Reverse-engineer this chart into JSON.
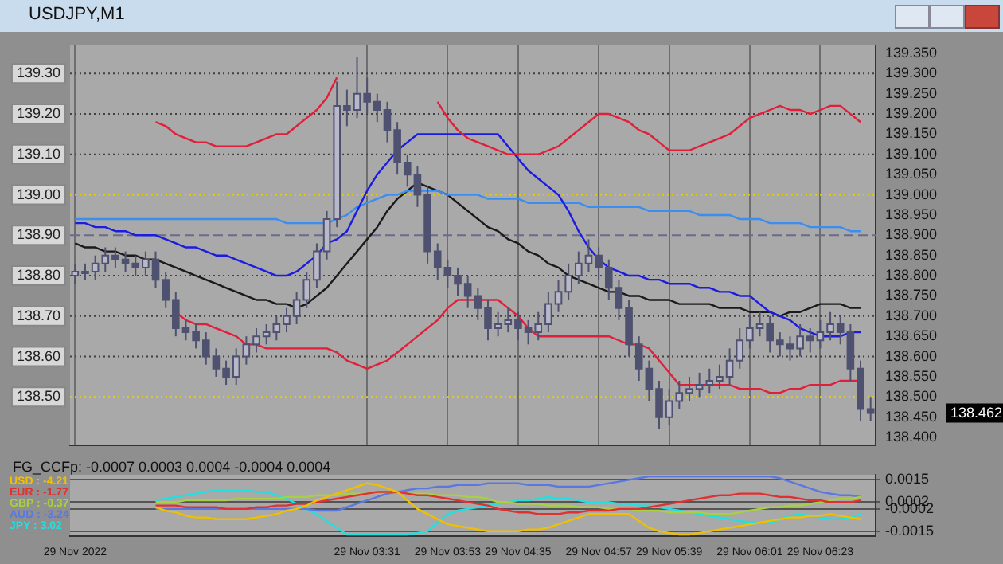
{
  "chart_data": [
    {
      "type": "candlestick",
      "title": "USDJPY,M1",
      "color": "#4f5170",
      "tick_labels": "y",
      "grid": "x",
      "marker": "none",
      "line_style": "solid",
      "categories": [
        null,
        null,
        null,
        null,
        null,
        null,
        null,
        null,
        null,
        null,
        null,
        null,
        null,
        null,
        null,
        null,
        null,
        null,
        null,
        null,
        null,
        null,
        null,
        null,
        null,
        null,
        null,
        null,
        null,
        null,
        null,
        null,
        null,
        null,
        null,
        null,
        null,
        null,
        null,
        null,
        null,
        null,
        null,
        null,
        null,
        null,
        null,
        null,
        null,
        null,
        null,
        null,
        null,
        null,
        null,
        null,
        null,
        null,
        null,
        null,
        null,
        null,
        null,
        null,
        null,
        null,
        null,
        null,
        null,
        null,
        null,
        null,
        null,
        null,
        null,
        null,
        null,
        null,
        null,
        null
      ],
      "ohlc": [
        [
          138.8,
          138.83,
          138.78,
          138.81
        ],
        [
          138.81,
          138.83,
          138.79,
          138.81
        ],
        [
          138.81,
          138.85,
          138.79,
          138.83
        ],
        [
          138.83,
          138.87,
          138.81,
          138.85
        ],
        [
          138.85,
          138.87,
          138.82,
          138.84
        ],
        [
          138.84,
          138.86,
          138.81,
          138.83
        ],
        [
          138.83,
          138.85,
          138.8,
          138.82
        ],
        [
          138.82,
          138.86,
          138.8,
          138.84
        ],
        [
          138.84,
          138.86,
          138.77,
          138.79
        ],
        [
          138.79,
          138.81,
          138.72,
          138.74
        ],
        [
          138.74,
          138.76,
          138.65,
          138.67
        ],
        [
          138.67,
          138.69,
          138.64,
          138.66
        ],
        [
          138.66,
          138.68,
          138.62,
          138.64
        ],
        [
          138.64,
          138.66,
          138.58,
          138.6
        ],
        [
          138.6,
          138.62,
          138.55,
          138.57
        ],
        [
          138.57,
          138.59,
          138.53,
          138.55
        ],
        [
          138.55,
          138.62,
          138.53,
          138.6
        ],
        [
          138.6,
          138.65,
          138.58,
          138.63
        ],
        [
          138.63,
          138.67,
          138.61,
          138.65
        ],
        [
          138.65,
          138.68,
          138.63,
          138.66
        ],
        [
          138.66,
          138.7,
          138.64,
          138.68
        ],
        [
          138.68,
          138.72,
          138.66,
          138.7
        ],
        [
          138.7,
          138.76,
          138.68,
          138.74
        ],
        [
          138.74,
          138.81,
          138.72,
          138.79
        ],
        [
          138.79,
          138.88,
          138.77,
          138.86
        ],
        [
          138.86,
          138.96,
          138.84,
          138.94
        ],
        [
          138.94,
          139.28,
          138.92,
          139.22
        ],
        [
          139.22,
          139.26,
          139.17,
          139.21
        ],
        [
          139.21,
          139.34,
          139.19,
          139.25
        ],
        [
          139.25,
          139.29,
          139.2,
          139.23
        ],
        [
          139.23,
          139.25,
          139.18,
          139.21
        ],
        [
          139.21,
          139.23,
          139.13,
          139.16
        ],
        [
          139.16,
          139.18,
          139.05,
          139.08
        ],
        [
          139.08,
          139.1,
          139.02,
          139.05
        ],
        [
          139.05,
          139.07,
          138.97,
          139.0
        ],
        [
          139.0,
          139.02,
          138.83,
          138.86
        ],
        [
          138.86,
          138.88,
          138.79,
          138.82
        ],
        [
          138.82,
          138.84,
          138.77,
          138.8
        ],
        [
          138.8,
          138.82,
          138.75,
          138.78
        ],
        [
          138.78,
          138.8,
          138.72,
          138.75
        ],
        [
          138.75,
          138.77,
          138.69,
          138.72
        ],
        [
          138.72,
          138.74,
          138.64,
          138.67
        ],
        [
          138.67,
          138.71,
          138.65,
          138.68
        ],
        [
          138.68,
          138.72,
          138.66,
          138.69
        ],
        [
          138.69,
          138.71,
          138.64,
          138.67
        ],
        [
          138.67,
          138.69,
          138.63,
          138.66
        ],
        [
          138.66,
          138.71,
          138.64,
          138.68
        ],
        [
          138.68,
          138.76,
          138.66,
          138.73
        ],
        [
          138.73,
          138.79,
          138.71,
          138.76
        ],
        [
          138.76,
          138.83,
          138.74,
          138.8
        ],
        [
          138.8,
          138.86,
          138.78,
          138.83
        ],
        [
          138.83,
          138.89,
          138.81,
          138.85
        ],
        [
          138.85,
          138.87,
          138.79,
          138.82
        ],
        [
          138.82,
          138.84,
          138.74,
          138.77
        ],
        [
          138.77,
          138.79,
          138.69,
          138.72
        ],
        [
          138.72,
          138.74,
          138.6,
          138.63
        ],
        [
          138.63,
          138.65,
          138.54,
          138.57
        ],
        [
          138.57,
          138.59,
          138.49,
          138.52
        ],
        [
          138.52,
          138.54,
          138.42,
          138.45
        ],
        [
          138.45,
          138.52,
          138.43,
          138.49
        ],
        [
          138.49,
          138.54,
          138.47,
          138.51
        ],
        [
          138.51,
          138.55,
          138.49,
          138.52
        ],
        [
          138.52,
          138.56,
          138.5,
          138.53
        ],
        [
          138.53,
          138.57,
          138.51,
          138.54
        ],
        [
          138.54,
          138.58,
          138.52,
          138.55
        ],
        [
          138.55,
          138.62,
          138.53,
          138.59
        ],
        [
          138.59,
          138.67,
          138.57,
          138.64
        ],
        [
          138.64,
          138.7,
          138.62,
          138.67
        ],
        [
          138.67,
          138.71,
          138.65,
          138.68
        ],
        [
          138.68,
          138.7,
          138.61,
          138.64
        ],
        [
          138.64,
          138.66,
          138.6,
          138.63
        ],
        [
          138.63,
          138.65,
          138.59,
          138.62
        ],
        [
          138.62,
          138.68,
          138.6,
          138.65
        ],
        [
          138.65,
          138.67,
          138.61,
          138.64
        ],
        [
          138.64,
          138.69,
          138.62,
          138.66
        ],
        [
          138.66,
          138.71,
          138.64,
          138.68
        ],
        [
          138.68,
          138.7,
          138.63,
          138.66
        ],
        [
          138.66,
          138.68,
          138.54,
          138.57
        ],
        [
          138.57,
          138.59,
          138.44,
          138.47
        ],
        [
          138.47,
          138.5,
          138.44,
          138.46
        ]
      ],
      "series": [
        {
          "type": "line",
          "color": "#e0203a",
          "values": [
            null,
            null,
            null,
            null,
            null,
            null,
            null,
            null,
            139.18,
            139.17,
            139.15,
            139.14,
            139.13,
            139.13,
            139.12,
            139.12,
            139.12,
            139.12,
            139.13,
            139.14,
            139.15,
            139.15,
            139.17,
            139.19,
            139.21,
            139.24,
            139.29,
            null,
            null,
            null,
            null,
            null,
            null,
            null,
            null,
            null,
            139.23,
            139.19,
            139.16,
            139.14,
            139.13,
            139.12,
            139.11,
            139.1,
            139.1,
            139.1,
            139.1,
            139.11,
            139.12,
            139.14,
            139.16,
            139.18,
            139.2,
            139.2,
            139.19,
            139.18,
            139.16,
            139.15,
            139.13,
            139.11,
            139.11,
            139.11,
            139.12,
            139.13,
            139.14,
            139.15,
            139.17,
            139.19,
            139.2,
            139.21,
            139.22,
            139.21,
            139.21,
            139.2,
            139.21,
            139.22,
            139.22,
            139.2,
            139.18,
            null
          ]
        },
        {
          "type": "line",
          "color": "#e0203a",
          "values": [
            null,
            null,
            null,
            null,
            null,
            null,
            null,
            null,
            null,
            null,
            138.71,
            138.69,
            138.68,
            138.68,
            138.67,
            138.66,
            138.65,
            138.63,
            138.63,
            138.62,
            138.62,
            138.62,
            138.62,
            138.62,
            138.62,
            138.62,
            138.61,
            138.59,
            138.58,
            138.57,
            138.58,
            138.59,
            138.61,
            138.63,
            138.65,
            138.67,
            138.69,
            138.72,
            138.74,
            138.74,
            138.74,
            138.74,
            138.74,
            138.72,
            138.7,
            138.67,
            138.65,
            138.65,
            138.65,
            138.65,
            138.65,
            138.65,
            138.65,
            138.65,
            138.64,
            138.63,
            138.63,
            138.62,
            138.59,
            138.56,
            138.53,
            138.53,
            138.53,
            138.53,
            138.53,
            138.53,
            138.52,
            138.52,
            138.52,
            138.51,
            138.51,
            138.52,
            138.52,
            138.53,
            138.53,
            138.53,
            138.54,
            138.54,
            138.54,
            null
          ]
        },
        {
          "type": "line",
          "color": "#1c1ce0",
          "values": [
            138.93,
            138.93,
            138.92,
            138.92,
            138.91,
            138.91,
            138.9,
            138.9,
            138.9,
            138.89,
            138.88,
            138.87,
            138.87,
            138.86,
            138.85,
            138.85,
            138.84,
            138.83,
            138.82,
            138.81,
            138.8,
            138.8,
            138.81,
            138.83,
            138.85,
            138.88,
            138.89,
            138.91,
            138.96,
            139.01,
            139.05,
            139.08,
            139.11,
            139.13,
            139.15,
            139.15,
            139.15,
            139.15,
            139.15,
            139.15,
            139.15,
            139.15,
            139.15,
            139.12,
            139.09,
            139.06,
            139.04,
            139.02,
            139.0,
            138.96,
            138.91,
            138.87,
            138.84,
            138.82,
            138.81,
            138.8,
            138.8,
            138.79,
            138.79,
            138.78,
            138.78,
            138.78,
            138.77,
            138.77,
            138.76,
            138.76,
            138.75,
            138.75,
            138.73,
            138.71,
            138.7,
            138.69,
            138.67,
            138.66,
            138.65,
            138.65,
            138.65,
            138.66,
            138.66,
            null
          ]
        },
        {
          "type": "line",
          "color": "#3a8ef0",
          "values": [
            138.94,
            138.94,
            138.94,
            138.94,
            138.94,
            138.94,
            138.94,
            138.94,
            138.94,
            138.94,
            138.94,
            138.94,
            138.94,
            138.94,
            138.94,
            138.94,
            138.94,
            138.94,
            138.94,
            138.94,
            138.94,
            138.93,
            138.93,
            138.93,
            138.93,
            138.93,
            138.94,
            138.95,
            138.97,
            138.98,
            138.99,
            139.0,
            139.0,
            139.01,
            139.01,
            139.01,
            139.01,
            139.0,
            139.0,
            139.0,
            139.0,
            138.99,
            138.99,
            138.99,
            138.99,
            138.98,
            138.98,
            138.98,
            138.98,
            138.98,
            138.98,
            138.97,
            138.97,
            138.97,
            138.97,
            138.97,
            138.97,
            138.96,
            138.96,
            138.96,
            138.96,
            138.96,
            138.95,
            138.95,
            138.95,
            138.95,
            138.94,
            138.94,
            138.94,
            138.93,
            138.93,
            138.93,
            138.93,
            138.92,
            138.92,
            138.92,
            138.92,
            138.91,
            138.91,
            null
          ]
        },
        {
          "type": "line",
          "color": "#1a1a1a",
          "values": [
            138.88,
            138.87,
            138.87,
            138.86,
            138.86,
            138.85,
            138.85,
            138.84,
            138.84,
            138.83,
            138.82,
            138.81,
            138.8,
            138.79,
            138.78,
            138.77,
            138.76,
            138.75,
            138.74,
            138.74,
            138.73,
            138.73,
            138.72,
            138.73,
            138.75,
            138.77,
            138.8,
            138.83,
            138.86,
            138.89,
            138.92,
            138.96,
            138.99,
            139.01,
            139.03,
            139.02,
            139.01,
            139.0,
            138.98,
            138.96,
            138.94,
            138.92,
            138.91,
            138.89,
            138.88,
            138.86,
            138.85,
            138.83,
            138.82,
            138.8,
            138.79,
            138.78,
            138.77,
            138.76,
            138.76,
            138.75,
            138.75,
            138.74,
            138.74,
            138.74,
            138.73,
            138.73,
            138.73,
            138.73,
            138.72,
            138.72,
            138.72,
            138.71,
            138.71,
            138.71,
            138.7,
            138.71,
            138.71,
            138.72,
            138.73,
            138.73,
            138.73,
            138.72,
            138.72,
            null
          ]
        }
      ],
      "ylim": [
        138.38,
        139.37
      ],
      "yticks": [
        {
          "value": 138.4,
          "label": "138.400"
        },
        {
          "value": 138.45,
          "label": "138.450"
        },
        {
          "value": 138.5,
          "label": "138.500"
        },
        {
          "value": 138.55,
          "label": "138.550"
        },
        {
          "value": 138.6,
          "label": "138.600"
        },
        {
          "value": 138.65,
          "label": "138.650"
        },
        {
          "value": 138.7,
          "label": "138.700"
        },
        {
          "value": 138.75,
          "label": "138.750"
        },
        {
          "value": 138.8,
          "label": "138.800"
        },
        {
          "value": 138.85,
          "label": "138.850"
        },
        {
          "value": 138.9,
          "label": "138.900"
        },
        {
          "value": 138.95,
          "label": "138.950"
        },
        {
          "value": 139.0,
          "label": "139.000"
        },
        {
          "value": 139.05,
          "label": "139.050"
        },
        {
          "value": 139.1,
          "label": "139.100"
        },
        {
          "value": 139.15,
          "label": "139.150"
        },
        {
          "value": 139.2,
          "label": "139.200"
        },
        {
          "value": 139.25,
          "label": "139.250"
        },
        {
          "value": 139.3,
          "label": "139.300"
        },
        {
          "value": 139.35,
          "label": "139.350"
        }
      ],
      "ref_lines": [
        {
          "axis": "y",
          "value": 139.3,
          "label": "139.30",
          "color": "#404040",
          "line_style": "dotted"
        },
        {
          "axis": "y",
          "value": 139.2,
          "label": "139.20",
          "color": "#404040",
          "line_style": "dotted"
        },
        {
          "axis": "y",
          "value": 139.1,
          "label": "139.10",
          "color": "#404040",
          "line_style": "dotted"
        },
        {
          "axis": "y",
          "value": 139.0,
          "label": "139.00",
          "color": "#e8d000",
          "line_style": "dotted"
        },
        {
          "axis": "y",
          "value": 138.9,
          "label": "138.90",
          "color": "#6a6a8a",
          "line_style": "dashed"
        },
        {
          "axis": "y",
          "value": 138.8,
          "label": "138.80",
          "color": "#404040",
          "line_style": "dotted"
        },
        {
          "axis": "y",
          "value": 138.7,
          "label": "138.70",
          "color": "#404040",
          "line_style": "dotted"
        },
        {
          "axis": "y",
          "value": 138.6,
          "label": "138.60",
          "color": "#404040",
          "line_style": "dotted"
        },
        {
          "axis": "y",
          "value": 138.5,
          "label": "138.50",
          "color": "#e8d000",
          "line_style": "dotted"
        }
      ],
      "annotations": [
        "138.462"
      ]
    },
    {
      "type": "line",
      "title": "FG_CCFp: -0.0007 0.0003 0.0004 -0.0004 0.0004",
      "legend": "top left",
      "grid": "y",
      "marker": "none",
      "line_style": "solid",
      "categories": [
        "29 Nov 2022",
        null,
        null,
        null,
        null,
        null,
        null,
        null,
        null,
        null,
        null,
        null,
        null,
        null,
        null,
        null,
        null,
        null,
        null,
        null,
        null,
        null,
        null,
        null,
        null,
        null,
        null,
        null,
        null,
        "29 Nov 03:31",
        null,
        null,
        null,
        null,
        null,
        null,
        null,
        "29 Nov 03:53",
        null,
        null,
        null,
        null,
        null,
        null,
        "29 Nov 04:35",
        null,
        null,
        null,
        null,
        null,
        null,
        null,
        "29 Nov 04:57",
        null,
        null,
        null,
        null,
        null,
        null,
        "29 Nov 05:39",
        null,
        null,
        null,
        null,
        null,
        null,
        null,
        "29 Nov 06:01",
        null,
        null,
        null,
        null,
        null,
        null,
        "29 Nov 06:23",
        null,
        null,
        null,
        null,
        null
      ],
      "series": [
        {
          "name": "USD : -4.21",
          "color": "#f0c000",
          "values": [
            null,
            null,
            null,
            null,
            null,
            null,
            null,
            null,
            -0.0001,
            -0.0003,
            -0.0004,
            -0.0006,
            -0.0007,
            -0.0007,
            -0.0008,
            -0.0008,
            -0.0008,
            -0.0008,
            -0.0007,
            -0.0006,
            -0.0005,
            -0.0003,
            -0.0002,
            0.0,
            0.0003,
            0.0005,
            0.0007,
            0.0009,
            0.0011,
            0.0013,
            0.0012,
            0.001,
            0.0008,
            0.0003,
            -0.0002,
            -0.0005,
            -0.0008,
            -0.0011,
            -0.0012,
            -0.0013,
            -0.0014,
            -0.0015,
            -0.0015,
            -0.0015,
            -0.0015,
            -0.0014,
            -0.0014,
            -0.0013,
            -0.0011,
            -0.0009,
            -0.0007,
            -0.0005,
            -0.0005,
            -0.0005,
            -0.0005,
            -0.0005,
            -0.0009,
            -0.0013,
            -0.0015,
            -0.0016,
            -0.0017,
            -0.0017,
            -0.0016,
            -0.0015,
            -0.0014,
            -0.0013,
            -0.0012,
            -0.0011,
            -0.001,
            -0.0009,
            -0.0008,
            -0.0007,
            -0.0007,
            -0.0006,
            -0.0006,
            -0.0005,
            -0.0006,
            -0.0007,
            -0.0008,
            null
          ]
        },
        {
          "name": "EUR : -1.77",
          "color": "#e03030",
          "values": [
            null,
            null,
            null,
            null,
            null,
            null,
            null,
            null,
            0.0,
            0.0,
            0.0,
            -0.0001,
            -0.0001,
            -0.0001,
            -0.0001,
            -0.0002,
            -0.0002,
            -0.0002,
            -0.0001,
            -0.0001,
            0.0,
            0.0,
            0.0001,
            0.0001,
            0.0002,
            0.0003,
            0.0004,
            0.0005,
            0.0006,
            0.0007,
            0.0008,
            0.0008,
            0.0008,
            0.0007,
            0.0006,
            0.0006,
            0.0005,
            0.0004,
            0.0003,
            0.0002,
            0.0001,
            0.0,
            -0.0002,
            -0.0003,
            -0.0004,
            -0.0004,
            -0.0005,
            -0.0005,
            -0.0005,
            -0.0004,
            -0.0004,
            -0.0003,
            -0.0003,
            -0.0003,
            -0.0002,
            -0.0002,
            -0.0002,
            -0.0001,
            0.0,
            0.0001,
            0.0002,
            0.0003,
            0.0004,
            0.0005,
            0.0006,
            0.0006,
            0.0007,
            0.0007,
            0.0007,
            0.0006,
            0.0005,
            0.0005,
            0.0004,
            0.0003,
            0.0003,
            0.0002,
            0.0002,
            0.0002,
            0.0003,
            null
          ]
        },
        {
          "name": "GBP : -0.37",
          "color": "#a8d040",
          "values": [
            null,
            null,
            null,
            null,
            null,
            null,
            null,
            null,
            0.0002,
            0.0002,
            0.0002,
            0.0003,
            0.0003,
            0.0003,
            0.0003,
            0.0003,
            0.0004,
            0.0004,
            0.0004,
            0.0004,
            0.0004,
            0.0005,
            0.0005,
            0.0005,
            0.0006,
            0.0006,
            0.0006,
            0.0007,
            0.0007,
            0.0007,
            0.0008,
            0.0008,
            0.0008,
            0.0007,
            0.0007,
            0.0007,
            0.0006,
            0.0006,
            0.0006,
            0.0005,
            0.0005,
            0.0004,
            0.0002,
            0.0002,
            0.0001,
            0.0001,
            0.0001,
            0.0,
            0.0,
            0.0,
            -0.0001,
            -0.0001,
            -0.0001,
            -0.0002,
            -0.0002,
            -0.0002,
            -0.0003,
            -0.0003,
            -0.0003,
            -0.0004,
            -0.0004,
            -0.0004,
            -0.0004,
            -0.0005,
            -0.0005,
            -0.0005,
            -0.0004,
            -0.0003,
            -0.0002,
            -0.0001,
            -0.0001,
            0.0,
            0.0,
            0.0001,
            0.0002,
            0.0003,
            0.0004,
            0.0004,
            0.0005,
            null
          ]
        },
        {
          "name": "AUD : -3.24",
          "color": "#5a78e0",
          "values": [
            null,
            null,
            null,
            null,
            null,
            null,
            null,
            null,
            -0.0002,
            -0.0002,
            -0.0002,
            -0.0002,
            -0.0002,
            -0.0002,
            -0.0002,
            -0.0002,
            -0.0002,
            -0.0002,
            -0.0002,
            -0.0002,
            -0.0002,
            -0.0002,
            -0.0002,
            -0.0002,
            -0.0003,
            -0.0003,
            -0.0003,
            -0.0001,
            0.0001,
            0.0003,
            0.0005,
            0.0007,
            0.0008,
            0.0009,
            0.001,
            0.001,
            0.0011,
            0.0011,
            0.0012,
            0.0012,
            0.0012,
            0.0013,
            0.0013,
            0.0013,
            0.0013,
            0.0012,
            0.0012,
            0.0012,
            0.0011,
            0.0011,
            0.0011,
            0.0011,
            0.0012,
            0.0013,
            0.0014,
            0.0015,
            0.0016,
            0.0017,
            0.0017,
            0.0017,
            0.0017,
            0.0017,
            0.0017,
            0.0017,
            0.0017,
            0.0017,
            0.0017,
            0.0017,
            0.0017,
            0.0017,
            0.0016,
            0.0014,
            0.0012,
            0.001,
            0.0008,
            0.0007,
            0.0006,
            0.0006,
            0.0005,
            null
          ]
        },
        {
          "name": "JPY : 3.02",
          "color": "#20e0e0",
          "values": [
            null,
            null,
            null,
            null,
            null,
            null,
            null,
            null,
            0.0003,
            0.0004,
            0.0005,
            0.0006,
            0.0007,
            0.0008,
            0.0009,
            0.0009,
            0.0009,
            0.0009,
            0.0008,
            0.0008,
            0.0006,
            0.0004,
            0.0001,
            -0.0002,
            -0.0005,
            -0.0009,
            -0.0013,
            -0.0017,
            -0.0017,
            -0.0017,
            -0.0017,
            -0.0017,
            -0.0017,
            -0.0017,
            -0.0016,
            -0.0015,
            -0.001,
            -0.0005,
            -0.0003,
            -0.0002,
            -0.0001,
            0.0,
            0.0001,
            0.0002,
            0.0003,
            0.0003,
            0.0004,
            0.0005,
            0.0004,
            0.0004,
            0.0003,
            0.0002,
            0.0002,
            0.0002,
            0.0001,
            0.0001,
            0.0,
            0.0,
            -0.0001,
            -0.0002,
            -0.0003,
            -0.0004,
            -0.0005,
            -0.0006,
            -0.0007,
            -0.0008,
            -0.0009,
            -0.001,
            -0.001,
            -0.001,
            -0.0008,
            -0.0006,
            -0.0005,
            -0.0006,
            -0.0007,
            -0.0008,
            -0.0008,
            -0.0007,
            -0.0005,
            null
          ]
        }
      ],
      "ylim": [
        -0.0018,
        0.0018
      ],
      "yticks": [
        0.0015,
        0.0002,
        -0.0002,
        -0.0015
      ]
    }
  ]
}
